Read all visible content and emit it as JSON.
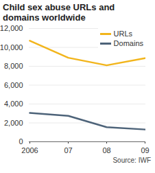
{
  "chart_data": {
    "type": "line",
    "title": "Child sex abuse URLs and domains worldwide",
    "categories": [
      "2006",
      "07",
      "08",
      "09"
    ],
    "series": [
      {
        "name": "URLs",
        "color": "#f2b51c",
        "values": [
          10700,
          8900,
          8100,
          8850
        ]
      },
      {
        "name": "Domains",
        "color": "#4d6379",
        "values": [
          3050,
          2750,
          1550,
          1300
        ]
      }
    ],
    "ylim": [
      0,
      12000
    ],
    "yticks": [
      0,
      {
        "value": 2000,
        "label": "2,000"
      },
      {
        "value": 4000,
        "label": "4,000"
      },
      {
        "value": 6000,
        "label": "6,000"
      },
      {
        "value": 8000,
        "label": "8,000"
      },
      {
        "value": 10000,
        "label": "10,000"
      },
      {
        "value": 12000,
        "label": "12,000"
      }
    ],
    "grid": true,
    "legend": "top-right",
    "caption": "Source: IWF"
  }
}
